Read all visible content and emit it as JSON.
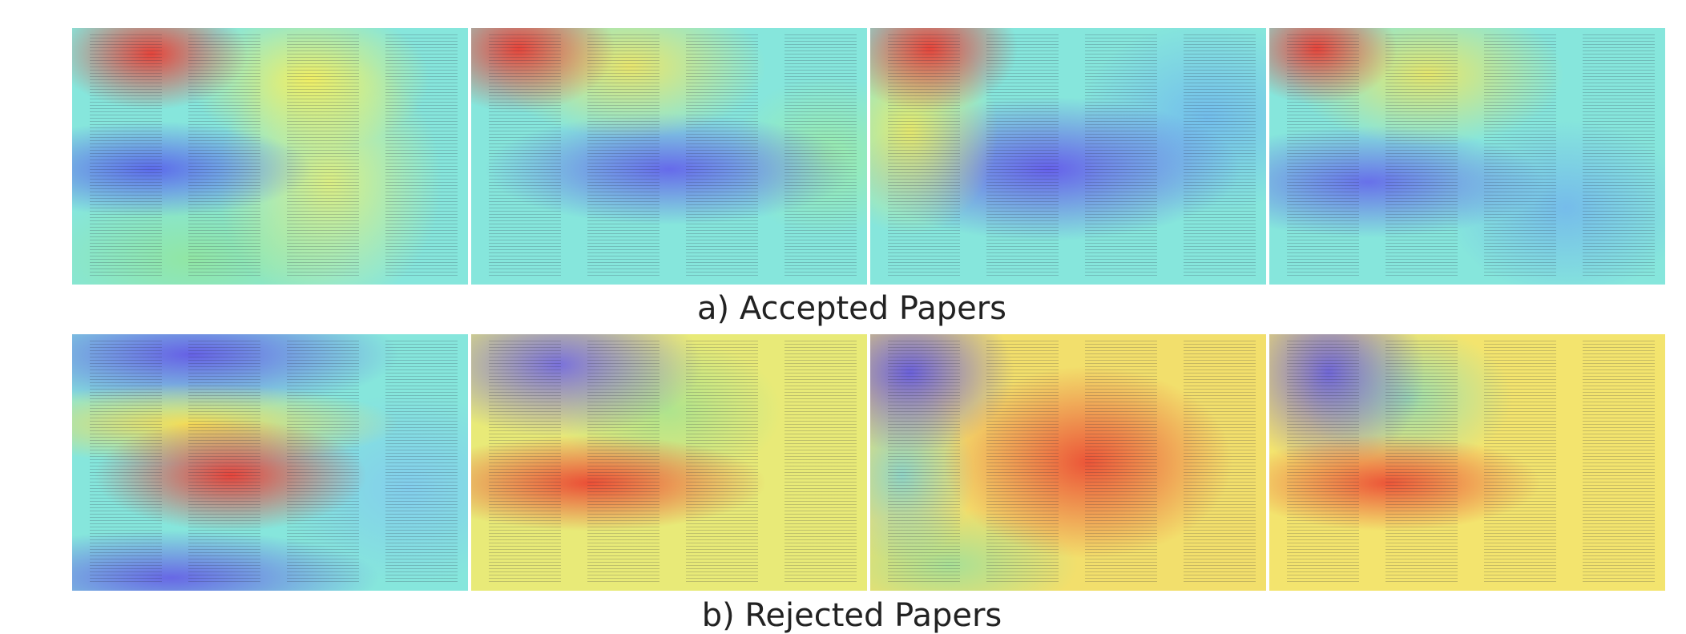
{
  "captions": {
    "accepted": "a) Accepted Papers",
    "rejected": "b) Rejected Papers"
  }
}
